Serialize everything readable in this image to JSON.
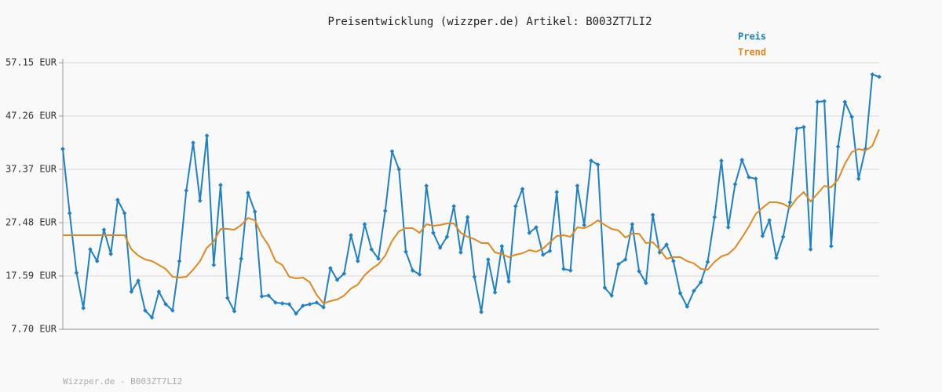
{
  "chart_data": {
    "type": "line",
    "title": "Preisentwicklung (wizzper.de) Artikel: B003ZT7LI2",
    "footer": "Wizzper.de - B003ZT7LI2",
    "ylim": [
      7.7,
      57.15
    ],
    "yticks": [
      {
        "value": 7.7,
        "label": "7.70 EUR"
      },
      {
        "value": 17.59,
        "label": "17.59 EUR"
      },
      {
        "value": 27.48,
        "label": "27.48 EUR"
      },
      {
        "value": 37.37,
        "label": "37.37 EUR"
      },
      {
        "value": 47.26,
        "label": "47.26 EUR"
      },
      {
        "value": 57.15,
        "label": "57.15 EUR"
      }
    ],
    "grid": true,
    "legend": "top-right",
    "series": [
      {
        "name": "Preis",
        "color": "#1f80c4",
        "markers": true,
        "values": [
          41.15,
          29.23,
          18.17,
          11.63,
          22.53,
          20.35,
          26.17,
          21.66,
          31.7,
          29.23,
          14.68,
          16.72,
          11.19,
          9.88,
          14.68,
          12.35,
          11.19,
          20.35,
          33.44,
          42.31,
          31.55,
          43.62,
          19.63,
          34.46,
          13.52,
          11.05,
          20.79,
          33.01,
          29.52,
          13.81,
          13.95,
          12.65,
          12.5,
          12.35,
          10.61,
          12.06,
          12.35,
          12.65,
          11.77,
          19.04,
          16.86,
          18.03,
          25.15,
          20.35,
          27.19,
          22.53,
          20.79,
          29.66,
          40.71,
          37.37,
          22.1,
          18.61,
          17.88,
          34.32,
          25.59,
          22.83,
          24.86,
          30.53,
          21.95,
          28.5,
          17.44,
          10.9,
          20.64,
          14.54,
          23.12,
          16.57,
          30.53,
          33.73,
          25.59,
          26.61,
          21.52,
          22.24,
          33.15,
          18.9,
          18.61,
          34.32,
          27.04,
          38.97,
          38.24,
          15.41,
          13.95,
          19.77,
          20.64,
          27.19,
          18.46,
          16.28,
          28.93,
          21.95,
          23.41,
          20.35,
          14.39,
          11.92,
          14.83,
          16.43,
          20.21,
          28.5,
          38.97,
          26.61,
          34.61,
          39.12,
          35.92,
          35.62,
          25.01,
          27.92,
          20.94,
          24.86,
          31.26,
          44.93,
          45.22,
          22.53,
          49.88,
          50.02,
          23.12,
          41.59,
          49.88,
          47.11,
          35.62,
          41.15,
          54.97,
          54.53
        ]
      },
      {
        "name": "Trend",
        "color": "#e0891f",
        "markers": false,
        "values": [
          25.15,
          25.15,
          25.15,
          25.15,
          25.15,
          25.15,
          25.15,
          25.15,
          25.15,
          25.15,
          22.53,
          21.37,
          20.64,
          20.35,
          19.63,
          18.9,
          17.44,
          17.3,
          17.44,
          18.75,
          20.35,
          22.83,
          23.99,
          26.32,
          26.32,
          26.17,
          27.04,
          28.35,
          27.92,
          25.15,
          23.26,
          20.35,
          19.63,
          17.44,
          17.15,
          17.3,
          16.43,
          14.1,
          12.5,
          12.94,
          13.23,
          13.95,
          15.26,
          15.99,
          17.74,
          18.9,
          19.77,
          21.37,
          24.13,
          25.88,
          26.46,
          26.46,
          25.59,
          27.19,
          26.9,
          27.04,
          27.33,
          27.33,
          25.59,
          24.86,
          24.43,
          23.7,
          23.7,
          21.95,
          21.66,
          21.08,
          21.52,
          21.81,
          22.39,
          22.1,
          22.68,
          23.84,
          25.01,
          25.15,
          24.86,
          26.61,
          26.46,
          27.04,
          27.92,
          27.04,
          26.32,
          26.03,
          24.72,
          25.44,
          25.44,
          23.7,
          23.84,
          22.53,
          20.79,
          21.08,
          21.08,
          20.35,
          19.92,
          18.9,
          18.75,
          20.21,
          21.23,
          21.66,
          22.83,
          24.72,
          26.75,
          29.08,
          30.24,
          31.26,
          31.26,
          30.97,
          30.24,
          31.99,
          33.15,
          31.41,
          32.86,
          34.32,
          34.03,
          35.48,
          38.39,
          40.57,
          41.15,
          40.86,
          41.73,
          44.79
        ]
      }
    ]
  }
}
